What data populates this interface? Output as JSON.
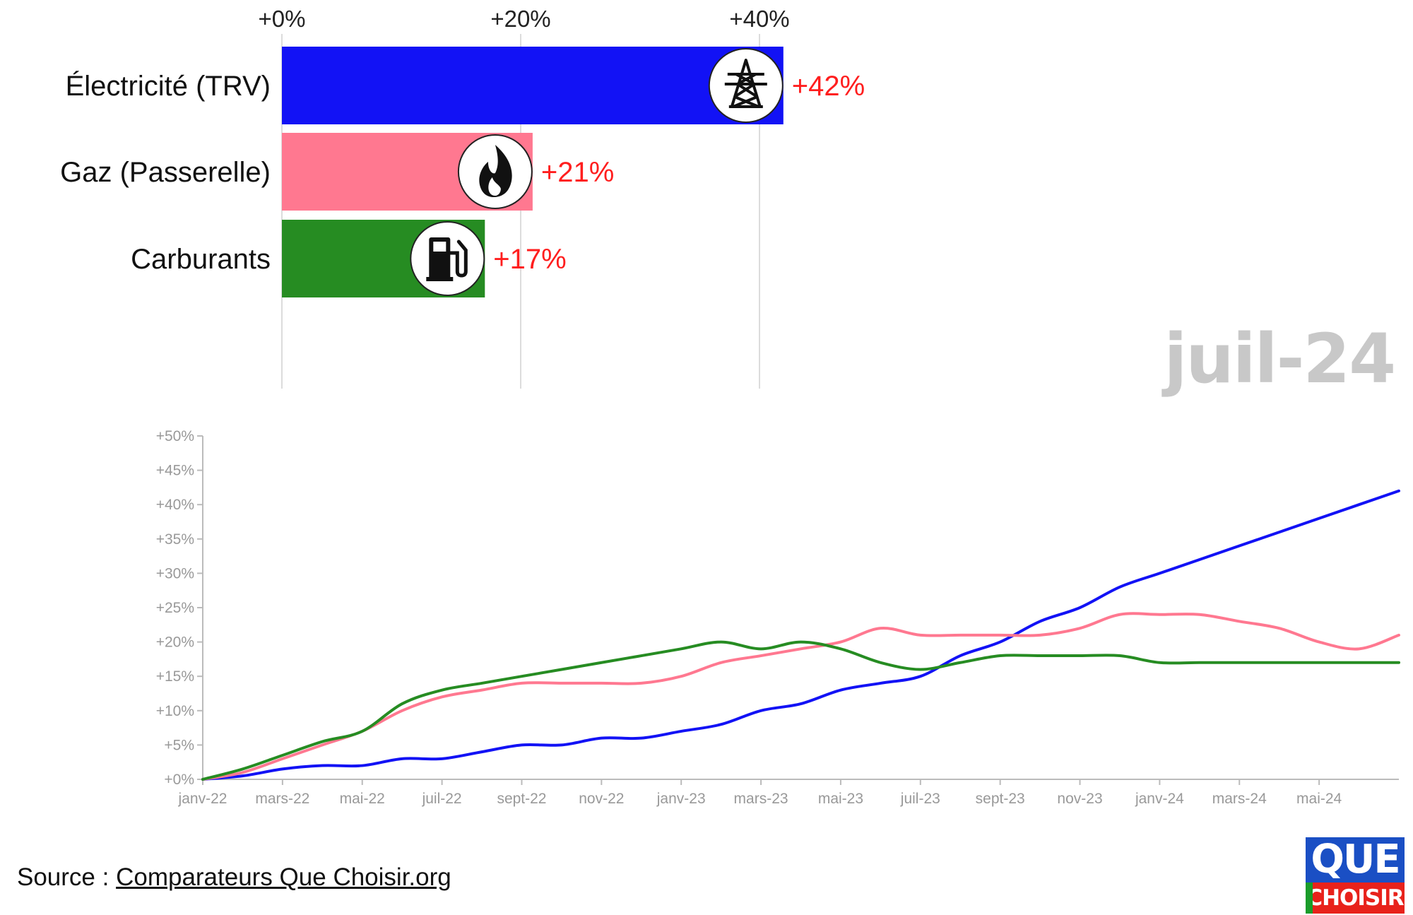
{
  "colors": {
    "electricite": "#1212f5",
    "gaz": "#ff7890",
    "carburants": "#268c22",
    "value_text": "#ff1e1e"
  },
  "chart_data": [
    {
      "type": "bar",
      "orientation": "horizontal",
      "categories": [
        "Électricité (TRV)",
        "Gaz (Passerelle)",
        "Carburants"
      ],
      "values": [
        42,
        21,
        17
      ],
      "value_labels": [
        "+42%",
        "+21%",
        "+17%"
      ],
      "icons": [
        "power-pylon-icon",
        "flame-icon",
        "fuel-pump-icon"
      ],
      "x_ticks": [
        "+0%",
        "+20%",
        "+40%"
      ],
      "xlim": [
        0,
        40
      ],
      "grid": true
    },
    {
      "type": "line",
      "x": [
        "janv-22",
        "févr-22",
        "mars-22",
        "avr-22",
        "mai-22",
        "juin-22",
        "juil-22",
        "août-22",
        "sept-22",
        "oct-22",
        "nov-22",
        "déc-22",
        "janv-23",
        "févr-23",
        "mars-23",
        "avr-23",
        "mai-23",
        "juin-23",
        "juil-23",
        "août-23",
        "sept-23",
        "oct-23",
        "nov-23",
        "déc-23",
        "janv-24",
        "févr-24",
        "mars-24",
        "avr-24",
        "mai-24",
        "juin-24",
        "juil-24"
      ],
      "x_tick_labels": [
        "janv-22",
        "mars-22",
        "mai-22",
        "juil-22",
        "sept-22",
        "nov-22",
        "janv-23",
        "mars-23",
        "mai-23",
        "juil-23",
        "sept-23",
        "nov-23",
        "janv-24",
        "mars-24",
        "mai-24"
      ],
      "y_tick_labels": [
        "+0%",
        "+5%",
        "+10%",
        "+15%",
        "+20%",
        "+25%",
        "+30%",
        "+35%",
        "+40%",
        "+45%",
        "+50%"
      ],
      "ylim": [
        0,
        50
      ],
      "series": [
        {
          "key": "electricite",
          "values": [
            0,
            0.5,
            1.5,
            2,
            2,
            3,
            3,
            4,
            5,
            5,
            6,
            6,
            7,
            8,
            10,
            11,
            13,
            14,
            15,
            18,
            20,
            23,
            25,
            28,
            30,
            32,
            34,
            36,
            38,
            40,
            42
          ]
        },
        {
          "key": "gaz",
          "values": [
            0,
            1,
            3,
            5,
            7,
            10,
            12,
            13,
            14,
            14,
            14,
            14,
            15,
            17,
            18,
            19,
            20,
            22,
            21,
            21,
            21,
            21,
            22,
            24,
            24,
            24,
            23,
            22,
            20,
            19,
            21
          ]
        },
        {
          "key": "carburants",
          "values": [
            0,
            1.5,
            3.5,
            5.5,
            7,
            11,
            13,
            14,
            15,
            16,
            17,
            18,
            19,
            20,
            19,
            20,
            19,
            17,
            16,
            17,
            18,
            18,
            18,
            18,
            17,
            17,
            17,
            17,
            17,
            17,
            17
          ]
        }
      ]
    }
  ],
  "date_label": "juil-24",
  "source": {
    "prefix": "Source : ",
    "link_text": "Comparateurs Que Choisir.org"
  },
  "logo": {
    "line1": "QUE",
    "line2": "CHOISIR"
  }
}
